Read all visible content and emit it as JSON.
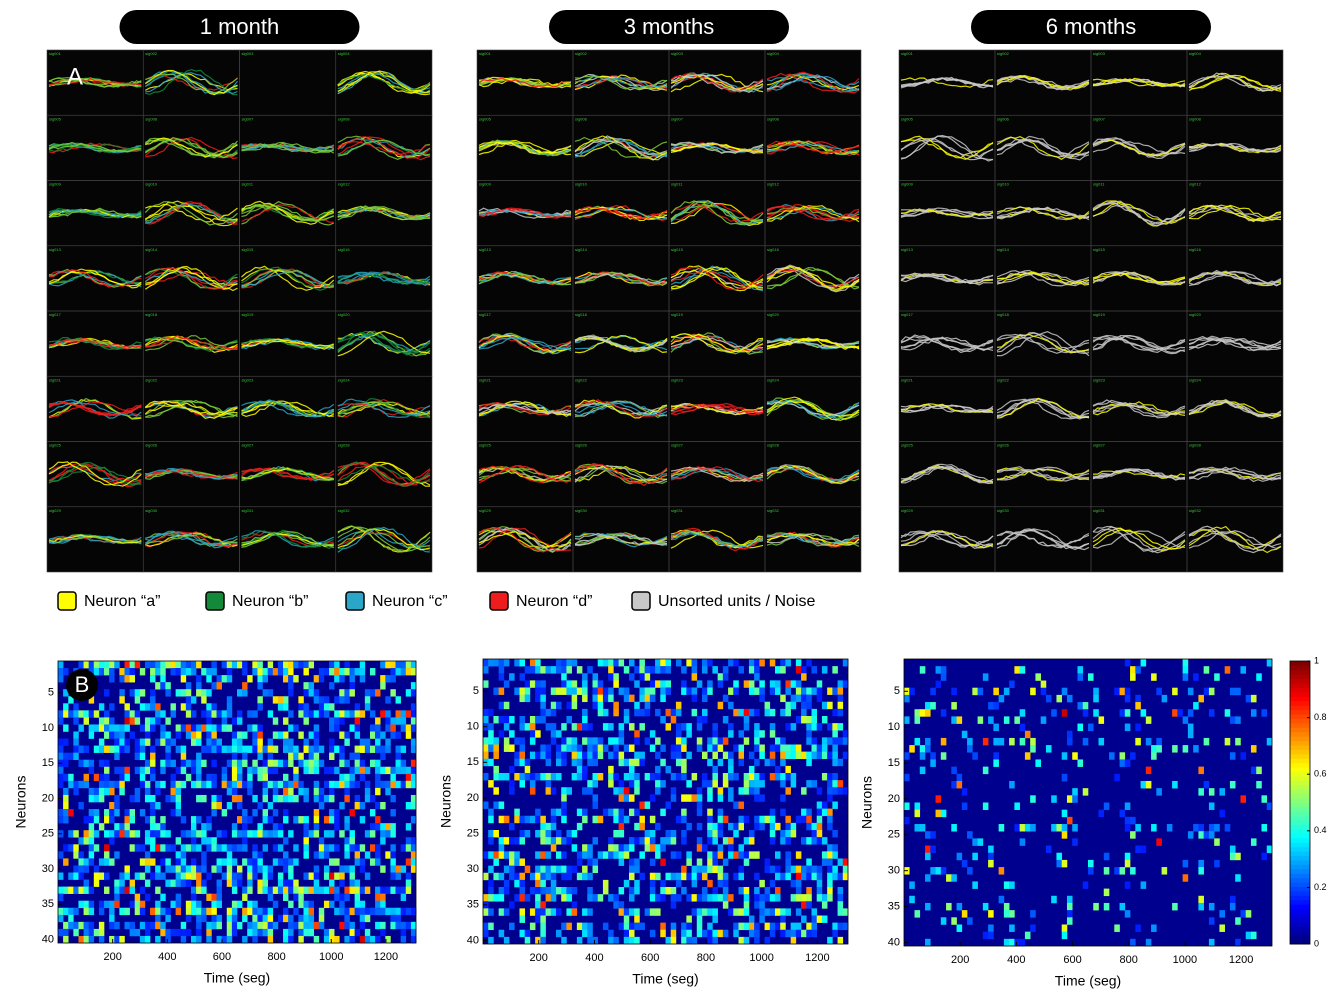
{
  "panels": [
    {
      "title": "1 month"
    },
    {
      "title": "3 months"
    },
    {
      "title": "6 months"
    }
  ],
  "panel_labels": {
    "a": "A",
    "b": "B"
  },
  "channels": [
    "sig001",
    "sig002",
    "sig003",
    "sig004",
    "sig005",
    "sig006",
    "sig007",
    "sig008",
    "sig009",
    "sig010",
    "sig011",
    "sig012",
    "sig013",
    "sig014",
    "sig015",
    "sig016",
    "sig017",
    "sig018",
    "sig019",
    "sig020",
    "sig021",
    "sig022",
    "sig023",
    "sig024",
    "sig025",
    "sig026",
    "sig027",
    "sig028",
    "sig029",
    "sig030",
    "sig031",
    "sig032"
  ],
  "legend": [
    {
      "name": "Neuron “a”",
      "color": "#ffff00"
    },
    {
      "name": "Neuron “b”",
      "color": "#138a3a"
    },
    {
      "name": "Neuron “c”",
      "color": "#2aa6c8"
    },
    {
      "name": "Neuron “d”",
      "color": "#ee1c1c"
    },
    {
      "name": "Unsorted units / Noise",
      "color": "#c8c8c8"
    }
  ],
  "heatmaps": {
    "x_label": "Time (seg)",
    "y_label": "Neurons",
    "xlim": [
      0,
      1310
    ],
    "xticks": [
      200,
      400,
      600,
      800,
      1000,
      1200
    ],
    "ylim": [
      0.5,
      40.5
    ],
    "yticks": [
      5,
      10,
      15,
      20,
      25,
      30,
      35,
      40
    ]
  },
  "colorbar": {
    "lim": [
      0,
      1
    ],
    "ticks": [
      0,
      0.2,
      0.4,
      0.6,
      0.8,
      1
    ]
  }
}
